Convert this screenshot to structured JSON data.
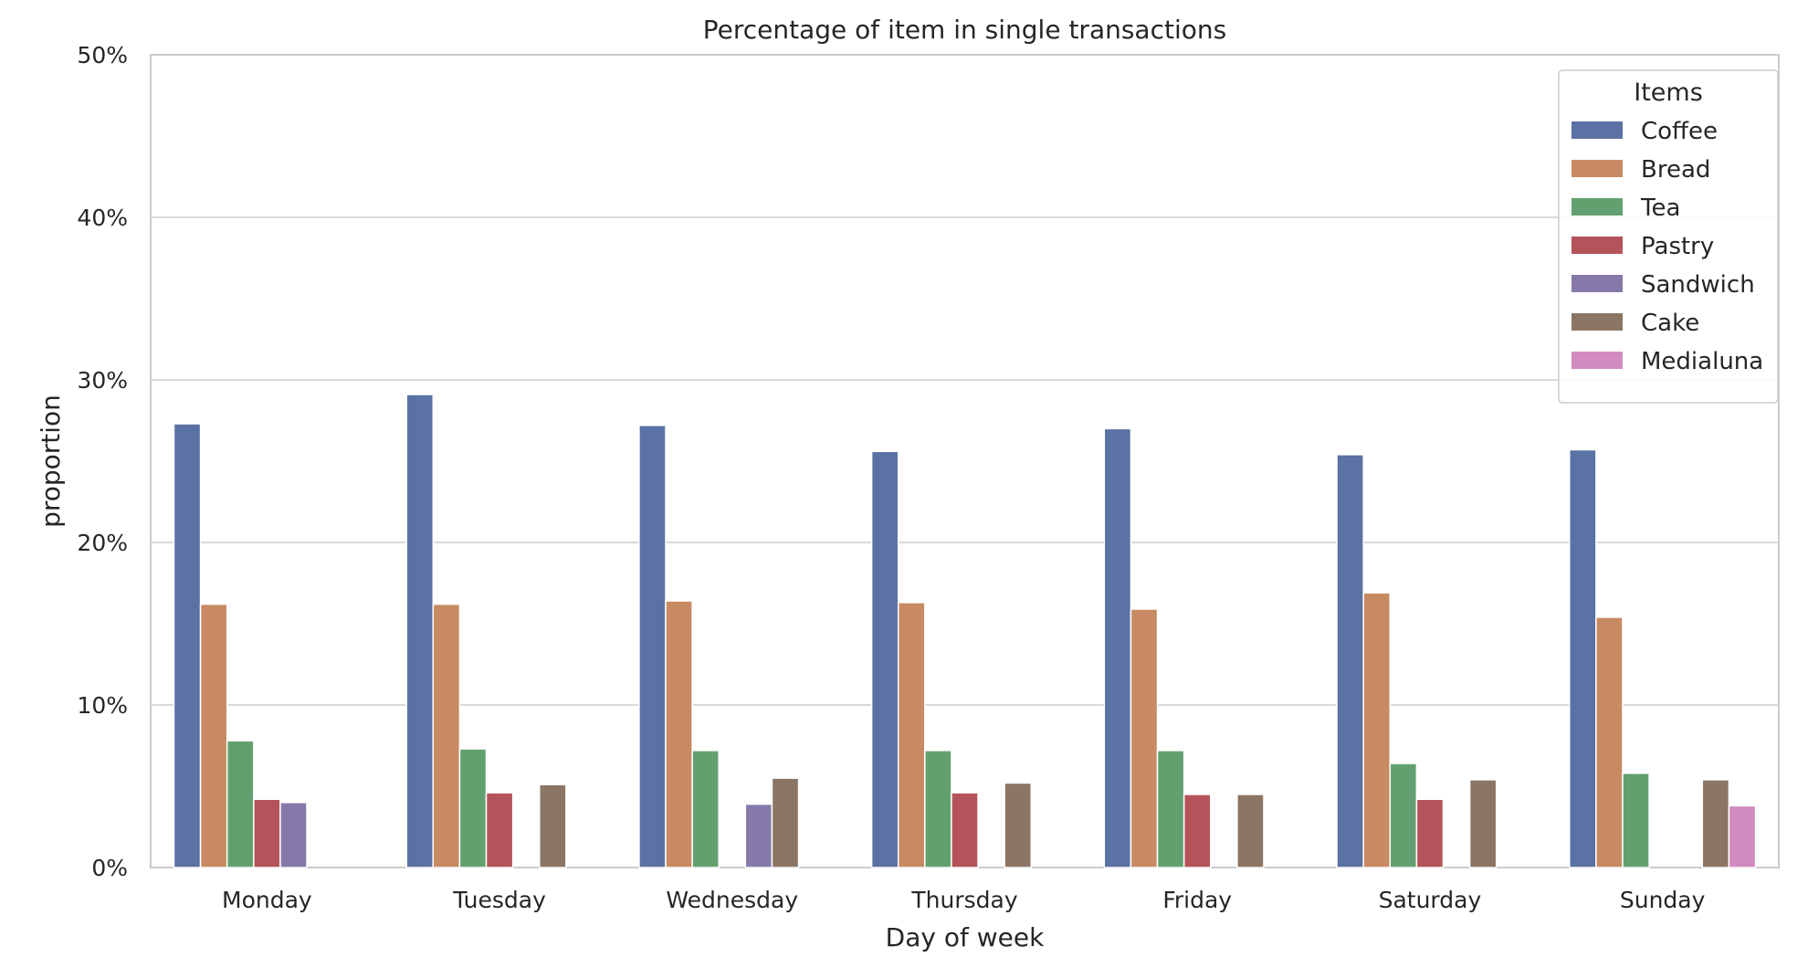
{
  "chart_data": {
    "type": "bar",
    "title": "Percentage of item in single transactions",
    "xlabel": "Day of week",
    "ylabel": "proportion",
    "ylim": [
      0,
      50
    ],
    "yticks": [
      "0%",
      "10%",
      "20%",
      "30%",
      "40%",
      "50%"
    ],
    "grid": true,
    "legend_title": "Items",
    "legend_position": "top-right",
    "categories": [
      "Monday",
      "Tuesday",
      "Wednesday",
      "Thursday",
      "Friday",
      "Saturday",
      "Sunday"
    ],
    "series": [
      {
        "name": "Coffee",
        "color": "#5a72a4",
        "values": [
          27.3,
          29.1,
          27.2,
          25.6,
          27.0,
          25.4,
          25.7
        ]
      },
      {
        "name": "Bread",
        "color": "#c88a62",
        "values": [
          16.2,
          16.2,
          16.4,
          16.3,
          15.9,
          16.9,
          15.4
        ]
      },
      {
        "name": "Tea",
        "color": "#63a070",
        "values": [
          7.8,
          7.3,
          7.2,
          7.2,
          7.2,
          6.4,
          5.8
        ]
      },
      {
        "name": "Pastry",
        "color": "#b4545a",
        "values": [
          4.2,
          4.6,
          null,
          4.6,
          4.5,
          4.2,
          null
        ]
      },
      {
        "name": "Sandwich",
        "color": "#8679a9",
        "values": [
          4.0,
          null,
          3.9,
          null,
          null,
          null,
          null
        ]
      },
      {
        "name": "Cake",
        "color": "#8b7564",
        "values": [
          null,
          5.1,
          5.5,
          5.2,
          4.5,
          5.4,
          5.4
        ]
      },
      {
        "name": "Medialuna",
        "color": "#d18bbf",
        "values": [
          null,
          null,
          null,
          null,
          null,
          null,
          3.8
        ]
      }
    ]
  }
}
